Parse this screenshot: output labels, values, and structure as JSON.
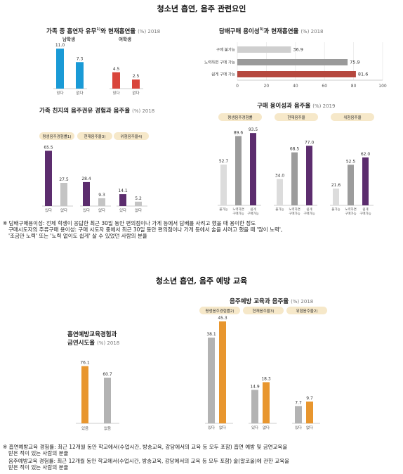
{
  "section1": {
    "title": "청소년 흡연, 음주 관련요인"
  },
  "section2": {
    "title": "청소년 흡연, 음주 예방 교육"
  },
  "notes1": [
    "※ 담배구매용이성: 전체 학생이 응답한 최근 30일 동안 편의점이나 가게 등에서 담배를 사려고 했을 때 용이한 정도",
    "구매시도자의 주류구매 용이성: 구매 시도자 중에서 최근 30일 동안 편의점이나 가게 등에서 술을 사려고 했을 때 '많이 노력',",
    "'조금만 노력' 또는 '노력 없이도 쉽게' 살 수 있었던 사람의 분율"
  ],
  "notes2": [
    "※ 흡연예방교육 경험률: 최근 12개월 동안 학교에서(수업시간, 방송교육, 강당에서의 교육 등 모두 포함) 흡연 예방 및 금연교육을",
    "받은 적이 있는 사람의 분율",
    "음주예방교육 경험률: 최근 12개월 동안 학교에서(수업시간, 방송교육, 강당에서의 교육 등 모두 포함) 술(알코올)에 관한 교육을",
    "받은 적이 있는 사람의 분율"
  ],
  "chart_data": [
    {
      "id": "family_smoker",
      "type": "bar",
      "title": "가족 중 흡연자 유무",
      "title_sup": "1)",
      "title_rest": "와 현재흡연율",
      "unit_year": "(%) 2018",
      "groups": [
        {
          "name": "남학생",
          "categories": [
            "있다",
            "없다"
          ],
          "values": [
            11.0,
            7.3
          ],
          "labels": [
            "11.0",
            "7.3"
          ],
          "color": "#1a9ad6"
        },
        {
          "name": "여학생",
          "categories": [
            "있다",
            "없다"
          ],
          "values": [
            4.5,
            2.5
          ],
          "labels": [
            "4.5",
            "2.5"
          ],
          "color": "#d9453b"
        }
      ],
      "ylim": [
        0,
        12
      ]
    },
    {
      "id": "cig_purchase",
      "type": "bar",
      "orientation": "horizontal",
      "title": "담배구매 용이성",
      "title_sup": "3)",
      "title_rest": "과 현재흡연율",
      "unit_year": "(%) 2018",
      "categories": [
        "구매 불가능",
        "노력하면 구매 가능",
        "쉽게 구매 가능"
      ],
      "values": [
        36.9,
        75.9,
        81.6
      ],
      "labels": [
        "36.9",
        "75.9",
        "81.6"
      ],
      "colors": [
        "#cfcfcf",
        "#9a9a9a",
        "#b5473e"
      ],
      "xlim": [
        0,
        100
      ],
      "xticks": [
        "0",
        "20",
        "40",
        "60",
        "80",
        "100"
      ]
    },
    {
      "id": "friend_drink",
      "type": "bar",
      "title": "가족 친지의 음주권유 경험과 음주율",
      "unit_year": "(%) 2018",
      "groups": [
        {
          "name": "평생음주경험률",
          "sup": "1)",
          "categories": [
            "있다",
            "없다"
          ],
          "values": [
            65.5,
            27.5
          ],
          "labels": [
            "65.5",
            "27.5"
          ]
        },
        {
          "name": "현재음주율",
          "sup": "3)",
          "categories": [
            "있다",
            "없다"
          ],
          "values": [
            28.4,
            9.3
          ],
          "labels": [
            "28.4",
            "9.3"
          ]
        },
        {
          "name": "위험음주율",
          "sup": "4)",
          "categories": [
            "있다",
            "없다"
          ],
          "values": [
            14.1,
            5.2
          ],
          "labels": [
            "14.1",
            "5.2"
          ]
        }
      ],
      "colors": [
        "#5c2d6e",
        "#c4c4c4"
      ],
      "ylim": [
        0,
        70
      ]
    },
    {
      "id": "alcohol_purchase",
      "type": "bar",
      "title": "구매 용이성과 음주율",
      "unit_year": "(%) 2019",
      "groups": [
        {
          "name": "평생음주경험률",
          "categories": [
            "불가능",
            "노력하면 구매가능",
            "쉽게 구매가능"
          ],
          "values": [
            52.7,
            89.6,
            93.5
          ],
          "labels": [
            "52.7",
            "89.6",
            "93.5"
          ]
        },
        {
          "name": "현재음주율",
          "categories": [
            "불가능",
            "노력하면 구매가능",
            "쉽게 구매가능"
          ],
          "values": [
            34.0,
            68.5,
            77.0
          ],
          "labels": [
            "34.0",
            "68.5",
            "77.0"
          ]
        },
        {
          "name": "위험음주율",
          "categories": [
            "불가능",
            "노력하면 구매가능",
            "쉽게 구매가능"
          ],
          "values": [
            21.6,
            52.5,
            62.0
          ],
          "labels": [
            "21.6",
            "52.5",
            "62.0"
          ]
        }
      ],
      "colors": [
        "#dcdcdc",
        "#9c9c9c",
        "#5c2d6e"
      ],
      "ylim": [
        0,
        100
      ]
    },
    {
      "id": "smoke_edu",
      "type": "bar",
      "title_lines": [
        "흡연예방교육경험과",
        "금연시도율"
      ],
      "unit_year": "(%) 2018",
      "categories": [
        "있음",
        "없음"
      ],
      "values": [
        76.1,
        60.7
      ],
      "labels": [
        "76.1",
        "60.7"
      ],
      "colors": [
        "#e8962e",
        "#b3b3b3"
      ],
      "ylim": [
        0,
        100
      ]
    },
    {
      "id": "drink_edu",
      "type": "bar",
      "title": "음주예방 교육과 음주율",
      "unit_year": "(%) 2018",
      "groups": [
        {
          "name": "평생음주경험률",
          "sup": "2)",
          "categories": [
            "있다",
            "없다"
          ],
          "values": [
            38.1,
            45.3
          ],
          "labels": [
            "38.1",
            "45.3"
          ]
        },
        {
          "name": "현재음주율",
          "sup": "3)",
          "categories": [
            "있다",
            "없다"
          ],
          "values": [
            14.9,
            18.3
          ],
          "labels": [
            "14.9",
            "18.3"
          ]
        },
        {
          "name": "위험음주율",
          "sup": "2)",
          "categories": [
            "있다",
            "없다"
          ],
          "values": [
            7.7,
            9.7
          ],
          "labels": [
            "7.7",
            "9.7"
          ]
        }
      ],
      "colors": [
        "#b3b3b3",
        "#e8962e"
      ],
      "ylim": [
        0,
        50
      ]
    }
  ]
}
